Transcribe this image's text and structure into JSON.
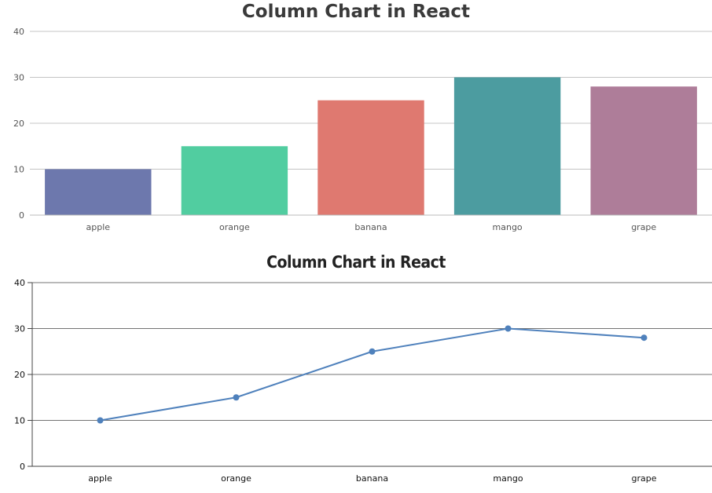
{
  "chart_data": [
    {
      "type": "bar",
      "title": "Column Chart in React",
      "categories": [
        "apple",
        "orange",
        "banana",
        "mango",
        "grape"
      ],
      "values": [
        10,
        15,
        25,
        30,
        28
      ],
      "colors": [
        "#6d78ad",
        "#51cda0",
        "#df7970",
        "#4c9ca0",
        "#ae7d99"
      ],
      "ylim": [
        0,
        40
      ],
      "yticks": [
        0,
        10,
        20,
        30,
        40
      ],
      "grid": true,
      "xlabel": "",
      "ylabel": ""
    },
    {
      "type": "line",
      "title": "Column Chart in React",
      "categories": [
        "apple",
        "orange",
        "banana",
        "mango",
        "grape"
      ],
      "values": [
        10,
        15,
        25,
        30,
        28
      ],
      "color": "#4f81bc",
      "ylim": [
        0,
        40
      ],
      "yticks": [
        0,
        10,
        20,
        30,
        40
      ],
      "grid": true,
      "xlabel": "",
      "ylabel": ""
    }
  ]
}
